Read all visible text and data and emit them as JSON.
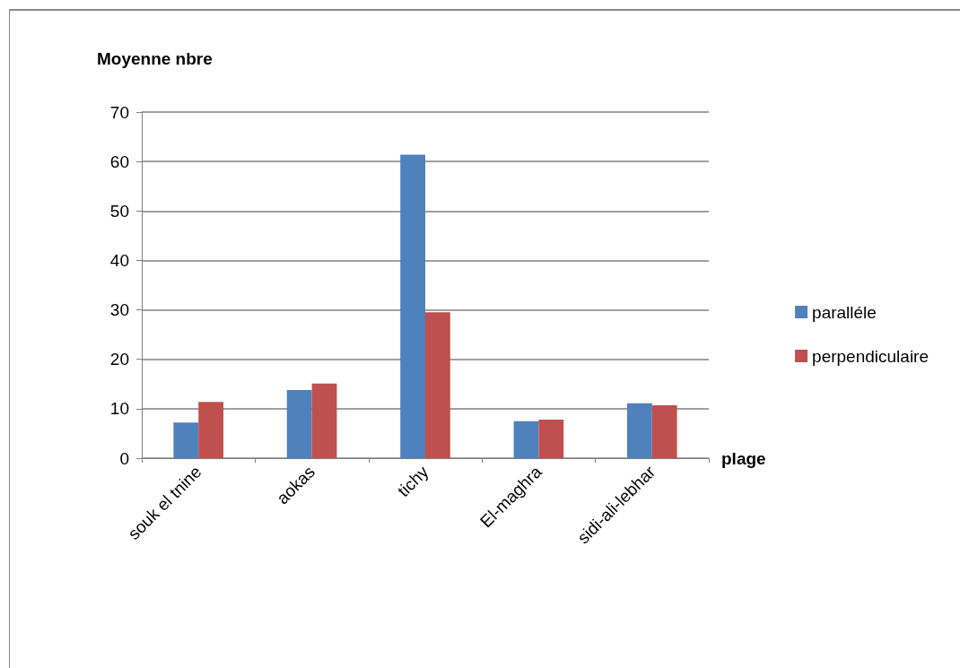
{
  "chart_data": {
    "type": "bar",
    "ylabel": "Moyenne nbre",
    "xlabel": "plage",
    "categories": [
      "souk el tnine",
      "aokas",
      "tichy",
      "El-maghra",
      "sidi-ali-lebhar"
    ],
    "series": [
      {
        "name": "paralléle",
        "color": "#4f81bd",
        "values": [
          7.2,
          13.8,
          61.4,
          7.5,
          11.1
        ]
      },
      {
        "name": "perpendiculaire",
        "color": "#c0504d",
        "values": [
          11.4,
          15.1,
          29.5,
          7.8,
          10.7
        ]
      }
    ],
    "ylim": [
      0,
      70
    ],
    "yticks": [
      0,
      10,
      20,
      30,
      40,
      50,
      60,
      70
    ],
    "grid": "y",
    "legend": "right"
  }
}
